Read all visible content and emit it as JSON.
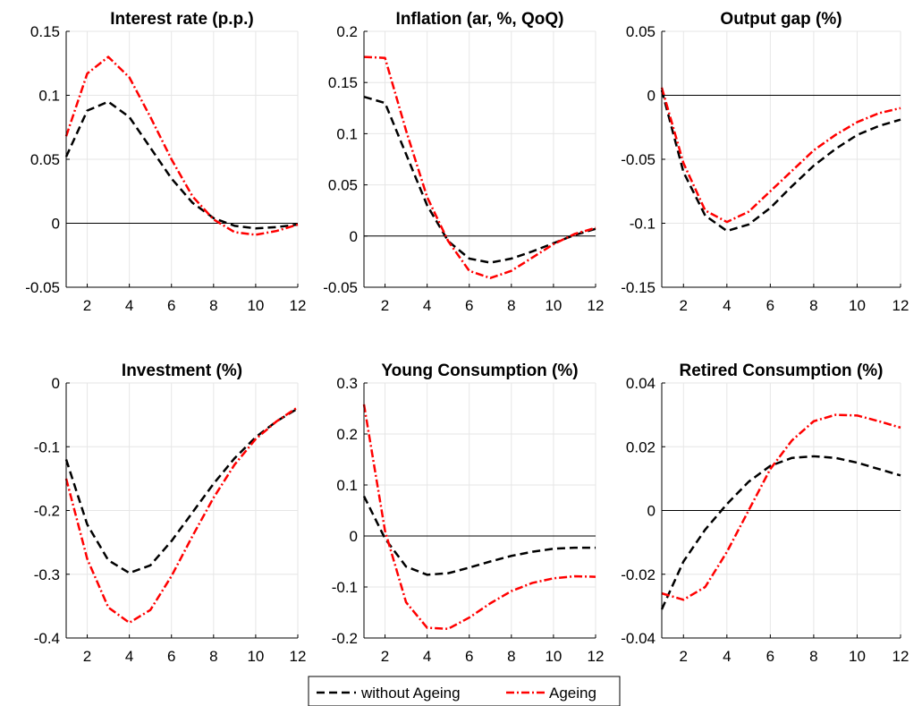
{
  "chart_data": [
    {
      "type": "line",
      "title": "Interest rate (p.p.)",
      "xlim": [
        1,
        12
      ],
      "ylim": [
        -0.05,
        0.15
      ],
      "xticks": [
        2,
        4,
        6,
        8,
        10,
        12
      ],
      "yticks": [
        -0.05,
        0,
        0.05,
        0.1,
        0.15
      ],
      "ytick_labels": [
        "-0.05",
        "0",
        "0.05",
        "0.1",
        "0.15"
      ],
      "grid": true,
      "x": [
        1,
        2,
        3,
        4,
        5,
        6,
        7,
        8,
        9,
        10,
        11,
        12
      ],
      "series": [
        {
          "name": "without Ageing",
          "values": [
            0.052,
            0.088,
            0.095,
            0.083,
            0.059,
            0.035,
            0.016,
            0.004,
            -0.002,
            -0.004,
            -0.003,
            -0.001
          ]
        },
        {
          "name": "Ageing",
          "values": [
            0.068,
            0.117,
            0.13,
            0.114,
            0.083,
            0.05,
            0.021,
            0.003,
            -0.007,
            -0.009,
            -0.006,
            -0.001
          ]
        }
      ]
    },
    {
      "type": "line",
      "title": "Inflation (ar, %, QoQ)",
      "xlim": [
        1,
        12
      ],
      "ylim": [
        -0.05,
        0.2
      ],
      "xticks": [
        2,
        4,
        6,
        8,
        10,
        12
      ],
      "yticks": [
        -0.05,
        0,
        0.05,
        0.1,
        0.15,
        0.2
      ],
      "ytick_labels": [
        "-0.05",
        "0",
        "0.05",
        "0.1",
        "0.15",
        "0.2"
      ],
      "grid": true,
      "x": [
        1,
        2,
        3,
        4,
        5,
        6,
        7,
        8,
        9,
        10,
        11,
        12
      ],
      "series": [
        {
          "name": "without Ageing",
          "values": [
            0.136,
            0.13,
            0.08,
            0.03,
            -0.005,
            -0.022,
            -0.026,
            -0.022,
            -0.015,
            -0.007,
            0.001,
            0.007
          ]
        },
        {
          "name": "Ageing",
          "values": [
            0.175,
            0.174,
            0.103,
            0.038,
            -0.005,
            -0.034,
            -0.041,
            -0.034,
            -0.021,
            -0.008,
            0.002,
            0.008
          ]
        }
      ]
    },
    {
      "type": "line",
      "title": "Output gap (%)",
      "xlim": [
        1,
        12
      ],
      "ylim": [
        -0.15,
        0.05
      ],
      "xticks": [
        2,
        4,
        6,
        8,
        10,
        12
      ],
      "yticks": [
        -0.15,
        -0.1,
        -0.05,
        0,
        0.05
      ],
      "ytick_labels": [
        "-0.15",
        "-0.1",
        "-0.05",
        "0",
        "0.05"
      ],
      "grid": true,
      "x": [
        1,
        2,
        3,
        4,
        5,
        6,
        7,
        8,
        9,
        10,
        11,
        12
      ],
      "series": [
        {
          "name": "without Ageing",
          "values": [
            0.004,
            -0.06,
            -0.094,
            -0.106,
            -0.101,
            -0.088,
            -0.071,
            -0.055,
            -0.042,
            -0.031,
            -0.024,
            -0.019
          ]
        },
        {
          "name": "Ageing",
          "values": [
            0.006,
            -0.053,
            -0.09,
            -0.099,
            -0.091,
            -0.075,
            -0.059,
            -0.043,
            -0.031,
            -0.021,
            -0.014,
            -0.01
          ]
        }
      ]
    },
    {
      "type": "line",
      "title": "Investment (%)",
      "xlim": [
        1,
        12
      ],
      "ylim": [
        -0.4,
        0
      ],
      "xticks": [
        2,
        4,
        6,
        8,
        10,
        12
      ],
      "yticks": [
        -0.4,
        -0.3,
        -0.2,
        -0.1,
        0
      ],
      "ytick_labels": [
        "-0.4",
        "-0.3",
        "-0.2",
        "-0.1",
        "0"
      ],
      "grid": true,
      "x": [
        1,
        2,
        3,
        4,
        5,
        6,
        7,
        8,
        9,
        10,
        11,
        12
      ],
      "series": [
        {
          "name": "without Ageing",
          "values": [
            -0.12,
            -0.222,
            -0.278,
            -0.298,
            -0.286,
            -0.248,
            -0.203,
            -0.158,
            -0.118,
            -0.085,
            -0.06,
            -0.04
          ]
        },
        {
          "name": "Ageing",
          "values": [
            -0.15,
            -0.276,
            -0.352,
            -0.376,
            -0.356,
            -0.303,
            -0.24,
            -0.18,
            -0.128,
            -0.088,
            -0.06,
            -0.038
          ]
        }
      ]
    },
    {
      "type": "line",
      "title": "Young Consumption (%)",
      "xlim": [
        1,
        12
      ],
      "ylim": [
        -0.2,
        0.3
      ],
      "xticks": [
        2,
        4,
        6,
        8,
        10,
        12
      ],
      "yticks": [
        -0.2,
        -0.1,
        0,
        0.1,
        0.2,
        0.3
      ],
      "ytick_labels": [
        "-0.2",
        "-0.1",
        "0",
        "0.1",
        "0.2",
        "0.3"
      ],
      "grid": true,
      "x": [
        1,
        2,
        3,
        4,
        5,
        6,
        7,
        8,
        9,
        10,
        11,
        12
      ],
      "series": [
        {
          "name": "without Ageing",
          "values": [
            0.078,
            -0.005,
            -0.06,
            -0.076,
            -0.073,
            -0.062,
            -0.05,
            -0.039,
            -0.031,
            -0.025,
            -0.023,
            -0.023
          ]
        },
        {
          "name": "Ageing",
          "values": [
            0.258,
            0.01,
            -0.13,
            -0.18,
            -0.182,
            -0.16,
            -0.132,
            -0.108,
            -0.092,
            -0.083,
            -0.079,
            -0.08
          ]
        }
      ]
    },
    {
      "type": "line",
      "title": "Retired Consumption (%)",
      "xlim": [
        1,
        12
      ],
      "ylim": [
        -0.04,
        0.04
      ],
      "xticks": [
        2,
        4,
        6,
        8,
        10,
        12
      ],
      "yticks": [
        -0.04,
        -0.02,
        0,
        0.02,
        0.04
      ],
      "ytick_labels": [
        "-0.04",
        "-0.02",
        "0",
        "0.02",
        "0.04"
      ],
      "grid": true,
      "x": [
        1,
        2,
        3,
        4,
        5,
        6,
        7,
        8,
        9,
        10,
        11,
        12
      ],
      "series": [
        {
          "name": "without Ageing",
          "values": [
            -0.031,
            -0.016,
            -0.006,
            0.002,
            0.009,
            0.014,
            0.0165,
            0.017,
            0.0165,
            0.015,
            0.013,
            0.011
          ]
        },
        {
          "name": "Ageing",
          "values": [
            -0.026,
            -0.028,
            -0.024,
            -0.013,
            0.0,
            0.013,
            0.022,
            0.028,
            0.03,
            0.0298,
            0.028,
            0.026
          ]
        }
      ]
    }
  ],
  "legend": {
    "placement": "bottom-center",
    "entries": [
      {
        "name": "without Ageing",
        "color": "#000000",
        "dash": "dashed"
      },
      {
        "name": "Ageing",
        "color": "#ff0000",
        "dash": "dash-dot"
      }
    ]
  },
  "colors": {
    "without_ageing": "#000000",
    "ageing": "#ff0000",
    "grid": "#e6e6e6",
    "zero_line": "#000000"
  }
}
